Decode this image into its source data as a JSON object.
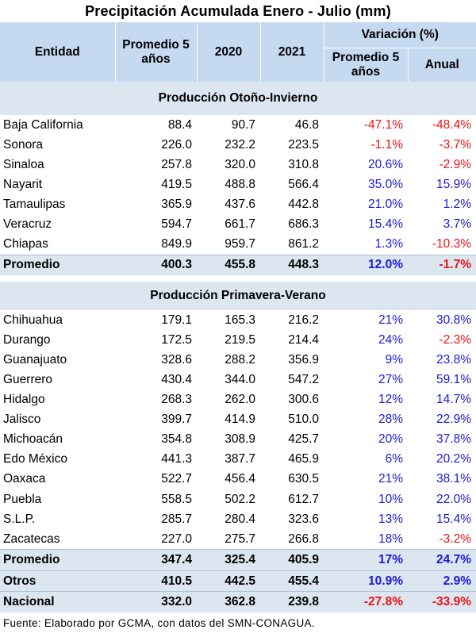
{
  "title": "Precipitación Acumulada Enero - Julio (mm)",
  "headers": {
    "entidad": "Entidad",
    "promedio5": "Promedio 5 años",
    "y2020": "2020",
    "y2021": "2021",
    "variacion": "Variación (%)",
    "var_promedio5": "Promedio 5 años",
    "var_anual": "Anual"
  },
  "sections": [
    {
      "label": "Producción Otoño-Invierno",
      "rows": [
        {
          "entidad": "Baja California",
          "prom": "88.4",
          "y2020": "90.7",
          "y2021": "46.8",
          "vp": "-47.1%",
          "va": "-48.4%"
        },
        {
          "entidad": "Sonora",
          "prom": "226.0",
          "y2020": "232.2",
          "y2021": "223.5",
          "vp": "-1.1%",
          "va": "-3.7%"
        },
        {
          "entidad": "Sinaloa",
          "prom": "257.8",
          "y2020": "320.0",
          "y2021": "310.8",
          "vp": "20.6%",
          "va": "-2.9%"
        },
        {
          "entidad": "Nayarit",
          "prom": "419.5",
          "y2020": "488.8",
          "y2021": "566.4",
          "vp": "35.0%",
          "va": "15.9%"
        },
        {
          "entidad": "Tamaulipas",
          "prom": "365.9",
          "y2020": "437.6",
          "y2021": "442.8",
          "vp": "21.0%",
          "va": "1.2%"
        },
        {
          "entidad": "Veracruz",
          "prom": "594.7",
          "y2020": "661.7",
          "y2021": "686.3",
          "vp": "15.4%",
          "va": "3.7%"
        },
        {
          "entidad": "Chiapas",
          "prom": "849.9",
          "y2020": "959.7",
          "y2021": "861.2",
          "vp": "1.3%",
          "va": "-10.3%"
        }
      ],
      "summary": {
        "entidad": "Promedio",
        "prom": "400.3",
        "y2020": "455.8",
        "y2021": "448.3",
        "vp": "12.0%",
        "va": "-1.7%"
      }
    },
    {
      "label": "Producción Primavera-Verano",
      "rows": [
        {
          "entidad": "Chihuahua",
          "prom": "179.1",
          "y2020": "165.3",
          "y2021": "216.2",
          "vp": "21%",
          "va": "30.8%"
        },
        {
          "entidad": "Durango",
          "prom": "172.5",
          "y2020": "219.5",
          "y2021": "214.4",
          "vp": "24%",
          "va": "-2.3%"
        },
        {
          "entidad": "Guanajuato",
          "prom": "328.6",
          "y2020": "288.2",
          "y2021": "356.9",
          "vp": "9%",
          "va": "23.8%"
        },
        {
          "entidad": "Guerrero",
          "prom": "430.4",
          "y2020": "344.0",
          "y2021": "547.2",
          "vp": "27%",
          "va": "59.1%"
        },
        {
          "entidad": "Hidalgo",
          "prom": "268.3",
          "y2020": "262.0",
          "y2021": "300.6",
          "vp": "12%",
          "va": "14.7%"
        },
        {
          "entidad": "Jalisco",
          "prom": "399.7",
          "y2020": "414.9",
          "y2021": "510.0",
          "vp": "28%",
          "va": "22.9%"
        },
        {
          "entidad": "Michoacán",
          "prom": "354.8",
          "y2020": "308.9",
          "y2021": "425.7",
          "vp": "20%",
          "va": "37.8%"
        },
        {
          "entidad": "Edo México",
          "prom": "441.3",
          "y2020": "387.7",
          "y2021": "465.9",
          "vp": "6%",
          "va": "20.2%"
        },
        {
          "entidad": "Oaxaca",
          "prom": "522.7",
          "y2020": "456.4",
          "y2021": "630.5",
          "vp": "21%",
          "va": "38.1%"
        },
        {
          "entidad": "Puebla",
          "prom": "558.5",
          "y2020": "502.2",
          "y2021": "612.7",
          "vp": "10%",
          "va": "22.0%"
        },
        {
          "entidad": "S.L.P.",
          "prom": "285.7",
          "y2020": "280.4",
          "y2021": "323.6",
          "vp": "13%",
          "va": "15.4%"
        },
        {
          "entidad": "Zacatecas",
          "prom": "227.0",
          "y2020": "275.7",
          "y2021": "266.8",
          "vp": "18%",
          "va": "-3.2%"
        }
      ],
      "summary": {
        "entidad": "Promedio",
        "prom": "347.4",
        "y2020": "325.4",
        "y2021": "405.9",
        "vp": "17%",
        "va": "24.7%"
      }
    }
  ],
  "totals": [
    {
      "entidad": "Otros",
      "prom": "410.5",
      "y2020": "442.5",
      "y2021": "455.4",
      "vp": "10.9%",
      "va": "2.9%"
    },
    {
      "entidad": "Nacional",
      "prom": "332.0",
      "y2020": "362.8",
      "y2021": "239.8",
      "vp": "-27.8%",
      "va": "-33.9%"
    }
  ],
  "footer": "Fuente: Elaborado por GCMA, con datos del SMN-CONAGUA.",
  "colors": {
    "header_bg": "#c5d9f1",
    "band_bg": "#dce6f1",
    "negative": "#ee1111",
    "positive": "#1a1adb"
  }
}
